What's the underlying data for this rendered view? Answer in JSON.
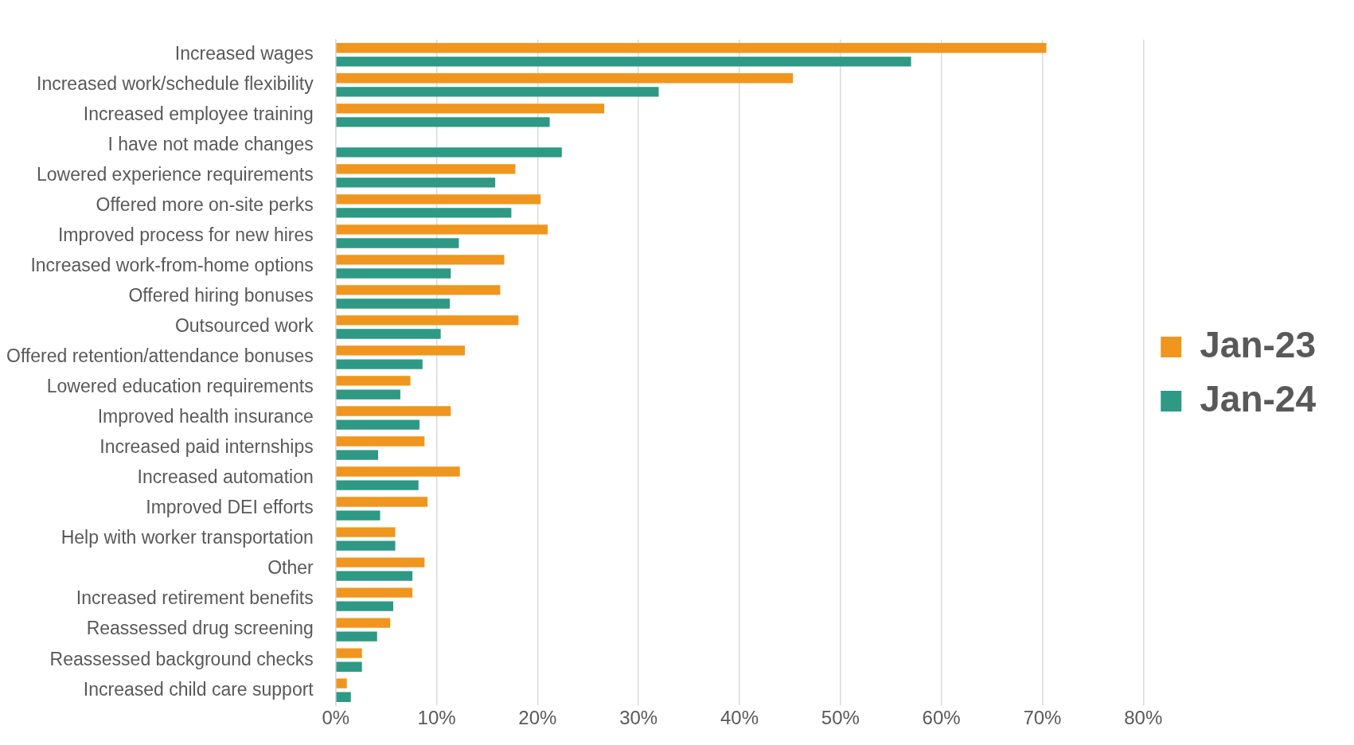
{
  "chart_data": {
    "type": "bar",
    "orientation": "horizontal",
    "categories": [
      "Increased wages",
      "Increased work/schedule flexibility",
      "Increased employee training",
      "I have not made changes",
      "Lowered experience requirements",
      "Offered more on-site perks",
      "Improved process for new hires",
      "Increased work-from-home options",
      "Offered hiring bonuses",
      "Outsourced work",
      "Offered retention/attendance bonuses",
      "Lowered education requirements",
      "Improved health insurance",
      "Increased paid internships",
      "Increased automation",
      "Improved DEI efforts",
      "Help with worker transportation",
      "Other",
      "Increased retirement benefits",
      "Reassessed drug screening",
      "Reassessed background checks",
      "Increased child care support"
    ],
    "series": [
      {
        "name": "Jan-23",
        "color": "#f0961e",
        "values": [
          70.4,
          45.3,
          26.6,
          null,
          17.8,
          20.3,
          21.0,
          16.7,
          16.3,
          18.1,
          12.8,
          7.4,
          11.4,
          8.8,
          12.3,
          9.1,
          5.9,
          8.8,
          7.6,
          5.4,
          2.6,
          1.1
        ]
      },
      {
        "name": "Jan-24",
        "color": "#2e9985",
        "values": [
          57.0,
          32.0,
          21.2,
          22.4,
          15.8,
          17.4,
          12.2,
          11.4,
          11.3,
          10.4,
          8.6,
          6.4,
          8.3,
          4.2,
          8.2,
          4.4,
          5.9,
          7.6,
          5.7,
          4.1,
          2.6,
          1.5
        ]
      }
    ],
    "xlim": [
      0,
      80
    ],
    "xticks": [
      {
        "value": 0,
        "label": "0%"
      },
      {
        "value": 10,
        "label": "10%"
      },
      {
        "value": 20,
        "label": "20%"
      },
      {
        "value": 30,
        "label": "30%"
      },
      {
        "value": 40,
        "label": "40%"
      },
      {
        "value": 50,
        "label": "50%"
      },
      {
        "value": 60,
        "label": "60%"
      },
      {
        "value": 70,
        "label": "70%"
      },
      {
        "value": 80,
        "label": "80%"
      }
    ],
    "grid": "x",
    "legend": "right"
  }
}
